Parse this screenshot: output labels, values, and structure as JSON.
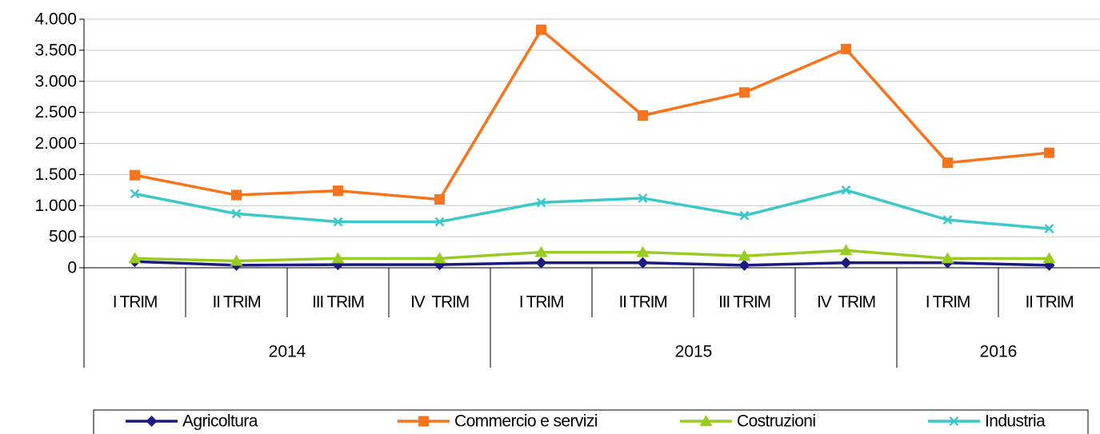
{
  "chart_data": {
    "type": "line",
    "groups": [
      {
        "label": "2014",
        "categories": [
          "I TRIM",
          "II TRIM",
          "III TRIM",
          "IV  TRIM"
        ]
      },
      {
        "label": "2015",
        "categories": [
          "I TRIM",
          "II TRIM",
          "III TRIM",
          "IV  TRIM"
        ]
      },
      {
        "label": "2016",
        "categories": [
          "I TRIM",
          "II TRIM"
        ]
      }
    ],
    "series": [
      {
        "name": "Agricoltura",
        "color": "#1a1a80",
        "marker": "diamond",
        "values": [
          100,
          40,
          50,
          50,
          80,
          80,
          40,
          80,
          80,
          40
        ]
      },
      {
        "name": "Commercio e servizi",
        "color": "#f7741c",
        "marker": "square",
        "values": [
          1490,
          1170,
          1240,
          1100,
          3830,
          2450,
          2820,
          3520,
          1690,
          1850
        ]
      },
      {
        "name": "Costruzioni",
        "color": "#99cc22",
        "marker": "triangle",
        "values": [
          150,
          110,
          150,
          150,
          250,
          250,
          190,
          280,
          150,
          150
        ]
      },
      {
        "name": "Industria",
        "color": "#3cc8c8",
        "marker": "x",
        "values": [
          1190,
          870,
          740,
          740,
          1050,
          1120,
          840,
          1250,
          770,
          630
        ]
      }
    ],
    "ylim": [
      0,
      4000
    ],
    "yticks": [
      0,
      500,
      {
        "value": 1000,
        "label": "1.000"
      },
      {
        "value": 1500,
        "label": "1.500"
      },
      {
        "value": 2000,
        "label": "2.000"
      },
      {
        "value": 2500,
        "label": "2.500"
      },
      {
        "value": 3000,
        "label": "3.000"
      },
      {
        "value": 3500,
        "label": "3.500"
      },
      {
        "value": 4000,
        "label": "4.000"
      }
    ],
    "grid": true,
    "legend": "bottom"
  }
}
